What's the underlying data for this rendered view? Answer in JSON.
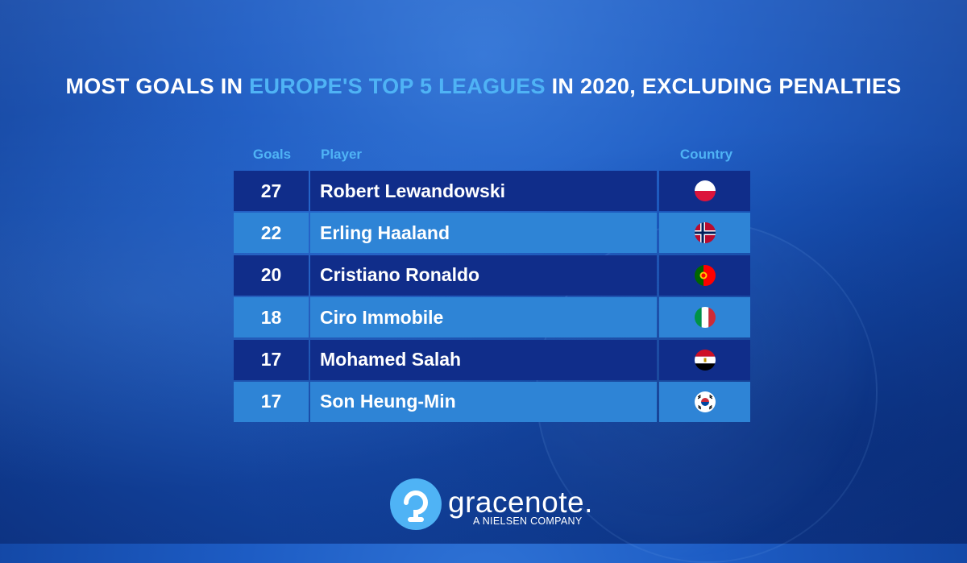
{
  "title": {
    "part1": "MOST GOALS IN ",
    "highlight": "EUROPE'S TOP 5 LEAGUES",
    "part2": " IN 2020, EXCLUDING PENALTIES"
  },
  "chart_data": {
    "type": "table",
    "columns": [
      "Goals",
      "Player",
      "Country"
    ],
    "rows": [
      {
        "goals": "27",
        "player": "Robert Lewandowski",
        "country_icon": "poland-flag-icon"
      },
      {
        "goals": "22",
        "player": "Erling Haaland",
        "country_icon": "norway-flag-icon"
      },
      {
        "goals": "20",
        "player": "Cristiano Ronaldo",
        "country_icon": "portugal-flag-icon"
      },
      {
        "goals": "18",
        "player": "Ciro Immobile",
        "country_icon": "italy-flag-icon"
      },
      {
        "goals": "17",
        "player": "Mohamed Salah",
        "country_icon": "egypt-flag-icon"
      },
      {
        "goals": "17",
        "player": "Son Heung-Min",
        "country_icon": "south-korea-flag-icon"
      }
    ]
  },
  "branding": {
    "name": "gracenote.",
    "tagline": "A NIELSEN COMPANY",
    "logo_icon": "gracenote-logo-icon"
  },
  "colors": {
    "accent": "#4fb3f5",
    "row_dark": "#102d8a",
    "row_light": "#2e84d6",
    "text": "#ffffff"
  }
}
